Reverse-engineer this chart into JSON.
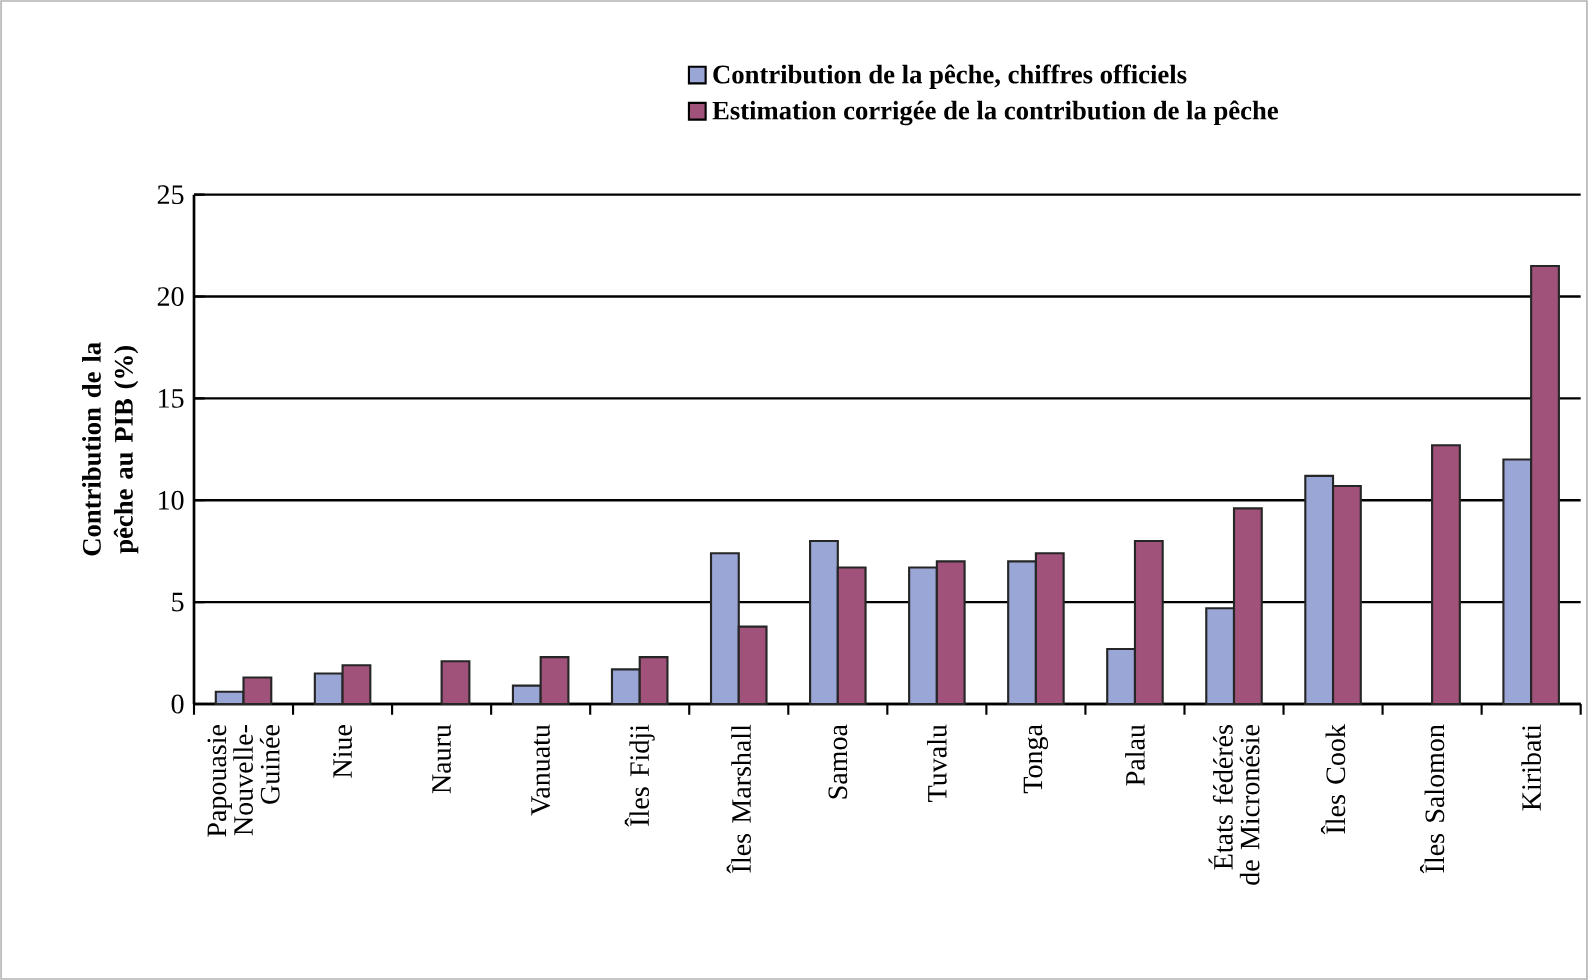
{
  "chart_data": {
    "type": "bar",
    "ylabel": "Contribution de la pêche au PIB (%)",
    "categories": [
      "Papouasie Nouvelle-Guinée",
      "Niue",
      "Nauru",
      "Vanuatu",
      "Îles Fidji",
      "Îles Marshall",
      "Samoa",
      "Tuvalu",
      "Tonga",
      "Palau",
      "États fédérés de Micronésie",
      "Îles Cook",
      "Îles Salomon",
      "Kiribati"
    ],
    "series": [
      {
        "name": "Contribution de la pêche, chiffres officiels",
        "color": "#9aa6d6",
        "values": [
          0.6,
          1.5,
          null,
          0.9,
          1.7,
          7.4,
          8.0,
          6.7,
          7.0,
          2.7,
          4.7,
          11.2,
          null,
          12.0
        ]
      },
      {
        "name": "Estimation corrigée de la contribution de la pêche",
        "color": "#a0527a",
        "values": [
          1.3,
          1.9,
          2.1,
          2.3,
          2.3,
          3.8,
          6.7,
          7.0,
          7.4,
          8.0,
          9.6,
          10.7,
          12.7,
          21.5
        ]
      }
    ],
    "ylim": [
      0,
      25
    ],
    "yticks": [
      0,
      5,
      10,
      15,
      20,
      25
    ],
    "grid": "y",
    "legend": "top"
  }
}
